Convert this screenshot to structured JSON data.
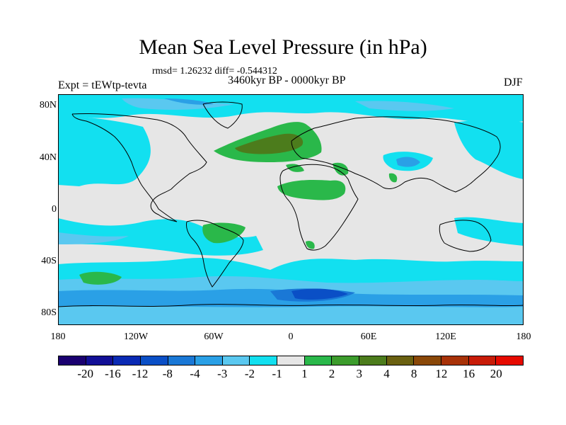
{
  "title": "Mean Sea Level Pressure (in hPa)",
  "stats": "rmsd= 1.26232 diff= -0.544312",
  "period": "3460kyr BP - 0000kyr BP",
  "experiment": "Expt = tEWtp-tevta",
  "season": "DJF",
  "lat_labels": [
    "80N",
    "40N",
    "0",
    "40S",
    "80S"
  ],
  "lon_labels": [
    "180",
    "120W",
    "60W",
    "0",
    "60E",
    "120E",
    "180"
  ],
  "colorbar": {
    "colors": [
      "#1a0070",
      "#120f96",
      "#0a2ab4",
      "#0a4fc6",
      "#1a78d6",
      "#2aa0e6",
      "#5ac8f0",
      "#12e0f0",
      "#e6e6e6",
      "#2ab84a",
      "#3c9c2c",
      "#4c7c1c",
      "#6a6010",
      "#8a4808",
      "#a83208",
      "#c81c08",
      "#e60a00"
    ],
    "labels": [
      "-20",
      "-16",
      "-12",
      "-8",
      "-4",
      "-3",
      "-2",
      "-1",
      "1",
      "2",
      "3",
      "4",
      "8",
      "12",
      "16",
      "20"
    ]
  },
  "map_colors": {
    "background": "#e6e6e6",
    "light_blue": "#5ac8f0",
    "cyan": "#12e0f0",
    "mid_blue": "#2aa0e6",
    "blue": "#1a78d6",
    "deep_blue": "#0a4fc6",
    "green": "#2ab84a",
    "olive": "#4c7c1c",
    "coast": "#000000"
  }
}
